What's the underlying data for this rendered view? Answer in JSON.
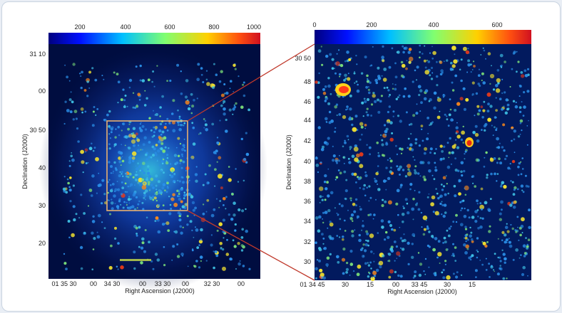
{
  "left_panel": {
    "colorbar_ticks": [
      "200",
      "400",
      "600",
      "800",
      "1000"
    ],
    "y_ticks": [
      "31 10",
      "00",
      "30 50",
      "40",
      "30",
      "20"
    ],
    "x_ticks": [
      "01 35 30",
      "00",
      "34 30",
      "00",
      "33 30",
      "00",
      "32 30",
      "00"
    ],
    "y_label": "Declination (J2000)",
    "x_label": "Right Ascension (J2000)"
  },
  "right_panel": {
    "colorbar_ticks": [
      "0",
      "200",
      "400",
      "600"
    ],
    "y_ticks": [
      "30 50",
      "48",
      "46",
      "44",
      "42",
      "40",
      "38",
      "36",
      "34",
      "32",
      "30"
    ],
    "x_ticks": [
      "01 34 45",
      "30",
      "15",
      "00",
      "33 45",
      "30",
      "15"
    ],
    "y_label": "Declination (J2000)",
    "x_label": "Right Ascension (J2000)"
  },
  "colors": {
    "background": "#000d40",
    "zoom_box": "#e8b070",
    "connector": "#c0392b"
  }
}
